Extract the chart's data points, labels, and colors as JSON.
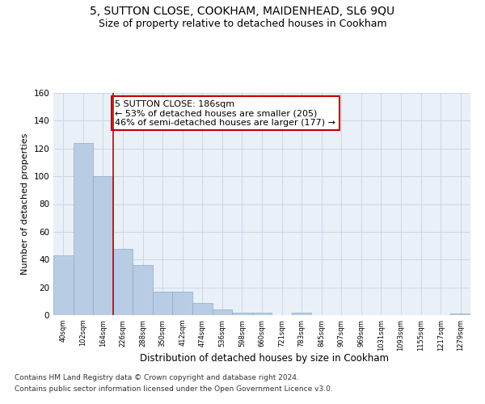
{
  "title": "5, SUTTON CLOSE, COOKHAM, MAIDENHEAD, SL6 9QU",
  "subtitle": "Size of property relative to detached houses in Cookham",
  "xlabel": "Distribution of detached houses by size in Cookham",
  "ylabel": "Number of detached properties",
  "categories": [
    "40sqm",
    "102sqm",
    "164sqm",
    "226sqm",
    "288sqm",
    "350sqm",
    "412sqm",
    "474sqm",
    "536sqm",
    "598sqm",
    "660sqm",
    "721sqm",
    "783sqm",
    "845sqm",
    "907sqm",
    "969sqm",
    "1031sqm",
    "1093sqm",
    "1155sqm",
    "1217sqm",
    "1279sqm"
  ],
  "values": [
    43,
    124,
    100,
    48,
    36,
    17,
    17,
    9,
    4,
    2,
    2,
    0,
    2,
    0,
    0,
    0,
    0,
    0,
    0,
    0,
    1
  ],
  "bar_color": "#b8cce4",
  "bar_edge_color": "#8eaacc",
  "vline_color": "#c00000",
  "annotation_text": "5 SUTTON CLOSE: 186sqm\n← 53% of detached houses are smaller (205)\n46% of semi-detached houses are larger (177) →",
  "annotation_box_color": "white",
  "annotation_box_edge_color": "#c00000",
  "ylim": [
    0,
    160
  ],
  "yticks": [
    0,
    20,
    40,
    60,
    80,
    100,
    120,
    140,
    160
  ],
  "grid_color": "#c8d8e8",
  "background_color": "#eaf0f8",
  "footer_line1": "Contains HM Land Registry data © Crown copyright and database right 2024.",
  "footer_line2": "Contains public sector information licensed under the Open Government Licence v3.0.",
  "title_fontsize": 10,
  "subtitle_fontsize": 9,
  "annotation_fontsize": 8,
  "footer_fontsize": 6.5,
  "ylabel_fontsize": 8,
  "xlabel_fontsize": 8.5,
  "ytick_fontsize": 7.5,
  "xtick_fontsize": 6
}
